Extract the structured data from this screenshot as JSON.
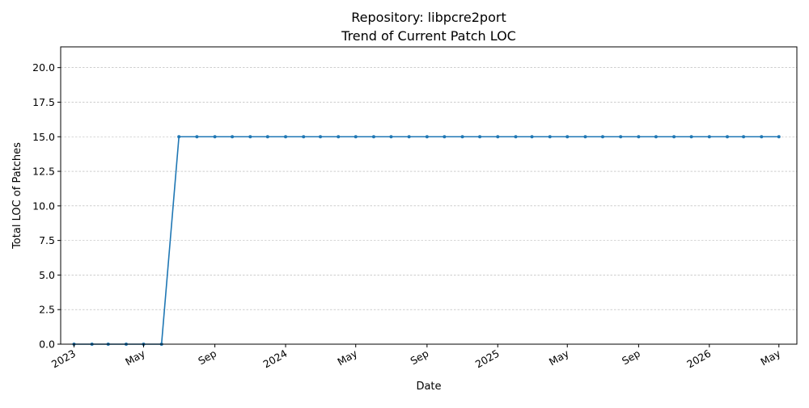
{
  "chart_data": {
    "type": "line",
    "title_line1": "Repository: libpcre2port",
    "title_line2": "Trend of Current Patch LOC",
    "xlabel": "Date",
    "ylabel": "Total LOC of Patches",
    "ylim": [
      0,
      21.5
    ],
    "xlim": [
      "2022-12-09",
      "2026-06-01"
    ],
    "grid": "y-dashed",
    "legend": "none",
    "line_color": "#1f77b4",
    "y_ticks": [
      {
        "value": 0,
        "label": "0.0"
      },
      {
        "value": 2.5,
        "label": "2.5"
      },
      {
        "value": 5,
        "label": "5.0"
      },
      {
        "value": 7.5,
        "label": "7.5"
      },
      {
        "value": 10,
        "label": "10.0"
      },
      {
        "value": 12.5,
        "label": "12.5"
      },
      {
        "value": 15,
        "label": "15.0"
      },
      {
        "value": 17.5,
        "label": "17.5"
      },
      {
        "value": 20,
        "label": "20.0"
      }
    ],
    "x_ticks": [
      {
        "date": "2023-01-01",
        "label": "2023"
      },
      {
        "date": "2023-05-01",
        "label": "May"
      },
      {
        "date": "2023-09-01",
        "label": "Sep"
      },
      {
        "date": "2024-01-01",
        "label": "2024"
      },
      {
        "date": "2024-05-01",
        "label": "May"
      },
      {
        "date": "2024-09-01",
        "label": "Sep"
      },
      {
        "date": "2025-01-01",
        "label": "2025"
      },
      {
        "date": "2025-05-01",
        "label": "May"
      },
      {
        "date": "2025-09-01",
        "label": "Sep"
      },
      {
        "date": "2026-01-01",
        "label": "2026"
      },
      {
        "date": "2026-05-01",
        "label": "May"
      }
    ],
    "series": [
      {
        "x": [
          "2023-01-01",
          "2023-02-01",
          "2023-03-01",
          "2023-04-01",
          "2023-05-01",
          "2023-06-01",
          "2023-07-01",
          "2023-08-01",
          "2023-09-01",
          "2023-10-01",
          "2023-11-01",
          "2023-12-01",
          "2024-01-01",
          "2024-02-01",
          "2024-03-01",
          "2024-04-01",
          "2024-05-01",
          "2024-06-01",
          "2024-07-01",
          "2024-08-01",
          "2024-09-01",
          "2024-10-01",
          "2024-11-01",
          "2024-12-01",
          "2025-01-01",
          "2025-02-01",
          "2025-03-01",
          "2025-04-01",
          "2025-05-01",
          "2025-06-01",
          "2025-07-01",
          "2025-08-01",
          "2025-09-01",
          "2025-10-01",
          "2025-11-01",
          "2025-12-01",
          "2026-01-01",
          "2026-02-01",
          "2026-03-01",
          "2026-04-01",
          "2026-05-01"
        ],
        "values": [
          0,
          0,
          0,
          0,
          0,
          0,
          15,
          15,
          15,
          15,
          15,
          15,
          15,
          15,
          15,
          15,
          15,
          15,
          15,
          15,
          15,
          15,
          15,
          15,
          15,
          15,
          15,
          15,
          15,
          15,
          15,
          15,
          15,
          15,
          15,
          15,
          15,
          15,
          15,
          15,
          15
        ]
      }
    ]
  }
}
